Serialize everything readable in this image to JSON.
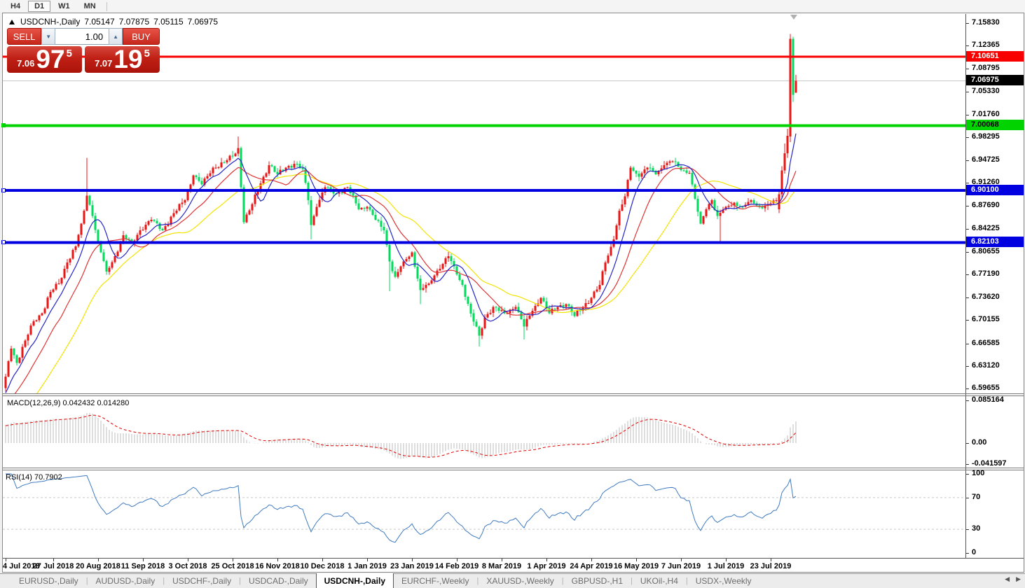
{
  "toolbar": {
    "timeframes": [
      "H4",
      "D1",
      "W1",
      "MN"
    ],
    "active_timeframe": "D1"
  },
  "chart_header": {
    "symbol": "USDCNH-,Daily",
    "open": "7.05147",
    "high": "7.07875",
    "low": "7.05115",
    "close": "7.06975"
  },
  "trade_panel": {
    "sell_label": "SELL",
    "buy_label": "BUY",
    "volume": "1.00",
    "sell_price_prefix": "7.06",
    "sell_price_big": "97",
    "sell_price_sup": "5",
    "buy_price_prefix": "7.07",
    "buy_price_big": "19",
    "buy_price_sup": "5"
  },
  "price_axis": {
    "ticks": [
      "7.15830",
      "7.12365",
      "7.08795",
      "7.05330",
      "7.01760",
      "6.98295",
      "6.94725",
      "6.91260",
      "6.87690",
      "6.84225",
      "6.80655",
      "6.77190",
      "6.73620",
      "6.70155",
      "6.66585",
      "6.63120",
      "6.59655"
    ],
    "badges": [
      {
        "value": "7.10651",
        "bg": "#f80000",
        "fg": "#ffffff"
      },
      {
        "value": "7.06975",
        "bg": "#000000",
        "fg": "#ffffff"
      },
      {
        "value": "7.00068",
        "bg": "#00d300",
        "fg": "#000000"
      },
      {
        "value": "6.90100",
        "bg": "#0000e0",
        "fg": "#ffffff"
      },
      {
        "value": "6.82103",
        "bg": "#0000e0",
        "fg": "#ffffff"
      }
    ]
  },
  "indicators": {
    "macd": {
      "label": "MACD(12,26,9)",
      "value": "0.042432",
      "signal_value": "0.014280",
      "axis": [
        "0.085164",
        "0.00",
        "-0.041597"
      ],
      "histogram_color": "#bdbdbd",
      "signal_color": "#dd0000"
    },
    "rsi": {
      "label": "RSI(14)",
      "value": "70.7902",
      "axis": [
        "100",
        "70",
        "30",
        "0"
      ],
      "levels": [
        70,
        30
      ],
      "line_color": "#3f7ac0"
    }
  },
  "tabs": {
    "items": [
      "EURUSD-,Daily",
      "AUDUSD-,Daily",
      "USDCHF-,Daily",
      "USDCAD-,Daily",
      "USDCNH-,Daily",
      "EURCHF-,Weekly",
      "XAUUSD-,Weekly",
      "GBPUSD-,H1",
      "UKOil-,H4",
      "USDX-,Weekly"
    ],
    "active": "USDCNH-,Daily"
  },
  "chart_data": {
    "type": "candlestick",
    "symbol": "USDCNH",
    "timeframe": "Daily",
    "price_range": {
      "top": 7.1583,
      "bottom": 6.59655
    },
    "colors": {
      "up": "#ee1414",
      "down": "#00db5c"
    },
    "horizontal_lines": [
      {
        "price": 7.10651,
        "color": "#f80000",
        "width": 3
      },
      {
        "price": 7.00068,
        "color": "#00d300",
        "width": 4
      },
      {
        "price": 6.901,
        "color": "#0000e0",
        "width": 4
      },
      {
        "price": 6.82103,
        "color": "#0000e0",
        "width": 4
      }
    ],
    "bid_line": {
      "price": 7.06975,
      "color": "#c9c9c9"
    },
    "moving_averages": [
      {
        "period": 8,
        "color": "#2424c8"
      },
      {
        "period": 17,
        "color": "#e03232"
      },
      {
        "period": 34,
        "color": "#f2e400"
      }
    ],
    "candles_count": 283,
    "anchors": [
      [
        0,
        6.615
      ],
      [
        2,
        6.658
      ],
      [
        4,
        6.636
      ],
      [
        7,
        6.67
      ],
      [
        10,
        6.7
      ],
      [
        13,
        6.712
      ],
      [
        16,
        6.745
      ],
      [
        19,
        6.758
      ],
      [
        22,
        6.79
      ],
      [
        25,
        6.815
      ],
      [
        27,
        6.85
      ],
      [
        29,
        6.893
      ],
      [
        31,
        6.862
      ],
      [
        33,
        6.822
      ],
      [
        36,
        6.776
      ],
      [
        39,
        6.8
      ],
      [
        42,
        6.832
      ],
      [
        45,
        6.82
      ],
      [
        48,
        6.84
      ],
      [
        52,
        6.856
      ],
      [
        56,
        6.84
      ],
      [
        60,
        6.866
      ],
      [
        64,
        6.886
      ],
      [
        67,
        6.924
      ],
      [
        70,
        6.91
      ],
      [
        74,
        6.936
      ],
      [
        78,
        6.944
      ],
      [
        81,
        6.954
      ],
      [
        83,
        6.966
      ],
      [
        85,
        6.852
      ],
      [
        88,
        6.88
      ],
      [
        91,
        6.912
      ],
      [
        94,
        6.94
      ],
      [
        97,
        6.926
      ],
      [
        100,
        6.936
      ],
      [
        103,
        6.942
      ],
      [
        106,
        6.934
      ],
      [
        108,
        6.886
      ],
      [
        109,
        6.848
      ],
      [
        111,
        6.876
      ],
      [
        114,
        6.906
      ],
      [
        118,
        6.896
      ],
      [
        122,
        6.906
      ],
      [
        126,
        6.872
      ],
      [
        129,
        6.876
      ],
      [
        132,
        6.856
      ],
      [
        135,
        6.84
      ],
      [
        137,
        6.792
      ],
      [
        139,
        6.768
      ],
      [
        142,
        6.792
      ],
      [
        145,
        6.806
      ],
      [
        148,
        6.748
      ],
      [
        151,
        6.758
      ],
      [
        154,
        6.778
      ],
      [
        158,
        6.8
      ],
      [
        161,
        6.772
      ],
      [
        163,
        6.756
      ],
      [
        166,
        6.712
      ],
      [
        169,
        6.678
      ],
      [
        171,
        6.706
      ],
      [
        174,
        6.722
      ],
      [
        178,
        6.712
      ],
      [
        182,
        6.722
      ],
      [
        185,
        6.692
      ],
      [
        188,
        6.716
      ],
      [
        191,
        6.736
      ],
      [
        194,
        6.712
      ],
      [
        197,
        6.722
      ],
      [
        200,
        6.726
      ],
      [
        203,
        6.708
      ],
      [
        206,
        6.722
      ],
      [
        209,
        6.736
      ],
      [
        212,
        6.756
      ],
      [
        214,
        6.79
      ],
      [
        217,
        6.826
      ],
      [
        219,
        6.87
      ],
      [
        221,
        6.892
      ],
      [
        223,
        6.936
      ],
      [
        226,
        6.922
      ],
      [
        229,
        6.936
      ],
      [
        232,
        6.926
      ],
      [
        235,
        6.94
      ],
      [
        238,
        6.946
      ],
      [
        241,
        6.932
      ],
      [
        244,
        6.928
      ],
      [
        246,
        6.888
      ],
      [
        248,
        6.85
      ],
      [
        250,
        6.872
      ],
      [
        252,
        6.886
      ],
      [
        254,
        6.862
      ],
      [
        257,
        6.876
      ],
      [
        260,
        6.882
      ],
      [
        263,
        6.876
      ],
      [
        266,
        6.886
      ],
      [
        269,
        6.876
      ],
      [
        272,
        6.88
      ],
      [
        275,
        6.886
      ],
      [
        276,
        6.895
      ]
    ],
    "wick_overrides": {
      "29": {
        "h": 6.951
      },
      "83": {
        "h": 6.984
      },
      "109": {
        "l": 6.826
      },
      "137": {
        "l": 6.746
      },
      "148": {
        "l": 6.726
      },
      "169": {
        "l": 6.661
      },
      "185": {
        "l": 6.672
      },
      "255": {
        "l": 6.822
      }
    },
    "candle_overrides": {
      "276": {
        "o": 6.872,
        "h": 6.901,
        "l": 6.866,
        "c": 6.895
      },
      "277": {
        "o": 6.895,
        "h": 6.938,
        "l": 6.889,
        "c": 6.932
      },
      "278": {
        "o": 6.932,
        "h": 6.973,
        "l": 6.927,
        "c": 6.958
      },
      "279": {
        "o": 6.958,
        "h": 6.996,
        "l": 6.951,
        "c": 6.985
      },
      "280": {
        "o": 6.984,
        "h": 7.1415,
        "l": 6.9755,
        "c": 7.134
      },
      "281": {
        "o": 7.134,
        "h": 7.1375,
        "l": 7.037,
        "c": 7.048
      },
      "282": {
        "o": 7.05147,
        "h": 7.07875,
        "l": 7.05115,
        "c": 7.06975
      }
    },
    "prehistory": {
      "bars": 50,
      "start": 6.345,
      "end": 6.602
    },
    "date_ticks": [
      {
        "label": "4 Jul 2018",
        "i": 0
      },
      {
        "label": "27 Jul 2018",
        "i": 17
      },
      {
        "label": "20 Aug 2018",
        "i": 33
      },
      {
        "label": "11 Sep 2018",
        "i": 49
      },
      {
        "label": "3 Oct 2018",
        "i": 65
      },
      {
        "label": "25 Oct 2018",
        "i": 81
      },
      {
        "label": "16 Nov 2018",
        "i": 97
      },
      {
        "label": "10 Dec 2018",
        "i": 113
      },
      {
        "label": "1 Jan 2019",
        "i": 129
      },
      {
        "label": "23 Jan 2019",
        "i": 145
      },
      {
        "label": "14 Feb 2019",
        "i": 161
      },
      {
        "label": "8 Mar 2019",
        "i": 177
      },
      {
        "label": "1 Apr 2019",
        "i": 193
      },
      {
        "label": "24 Apr 2019",
        "i": 209
      },
      {
        "label": "16 May 2019",
        "i": 225
      },
      {
        "label": "7 Jun 2019",
        "i": 241
      },
      {
        "label": "1 Jul 2019",
        "i": 257
      },
      {
        "label": "23 Jul 2019",
        "i": 273
      }
    ]
  }
}
